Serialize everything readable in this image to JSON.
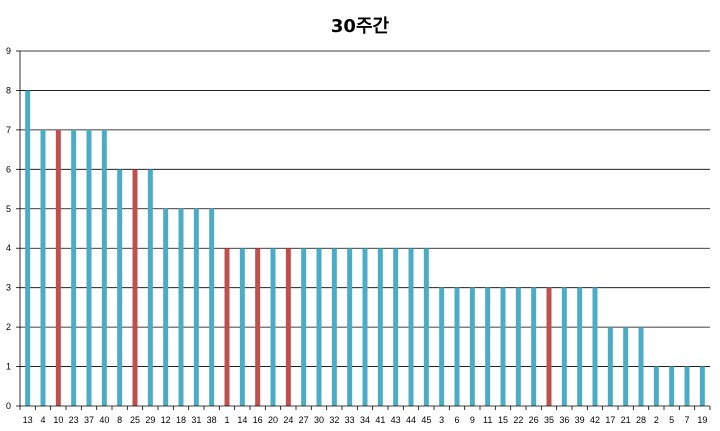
{
  "chart_data": {
    "type": "bar",
    "title": "30주간",
    "xlabel": "",
    "ylabel": "",
    "ylim": [
      0,
      9
    ],
    "yticks": [
      0,
      1,
      2,
      3,
      4,
      5,
      6,
      7,
      8,
      9
    ],
    "grid": true,
    "categories": [
      "13",
      "4",
      "10",
      "23",
      "37",
      "40",
      "8",
      "25",
      "29",
      "12",
      "18",
      "31",
      "38",
      "1",
      "14",
      "16",
      "20",
      "24",
      "27",
      "30",
      "32",
      "33",
      "34",
      "41",
      "43",
      "44",
      "45",
      "3",
      "6",
      "9",
      "11",
      "15",
      "22",
      "26",
      "35",
      "36",
      "39",
      "42",
      "17",
      "21",
      "28",
      "2",
      "5",
      "7",
      "19"
    ],
    "values": [
      8,
      7,
      7,
      7,
      7,
      7,
      6,
      6,
      6,
      5,
      5,
      5,
      5,
      4,
      4,
      4,
      4,
      4,
      4,
      4,
      4,
      4,
      4,
      4,
      4,
      4,
      4,
      3,
      3,
      3,
      3,
      3,
      3,
      3,
      3,
      3,
      3,
      3,
      2,
      2,
      2,
      1,
      1,
      1,
      1
    ],
    "highlighted": [
      "10",
      "25",
      "1",
      "16",
      "24",
      "35"
    ],
    "colors": {
      "default": "#4BACC6",
      "highlight": "#C0504D"
    }
  }
}
